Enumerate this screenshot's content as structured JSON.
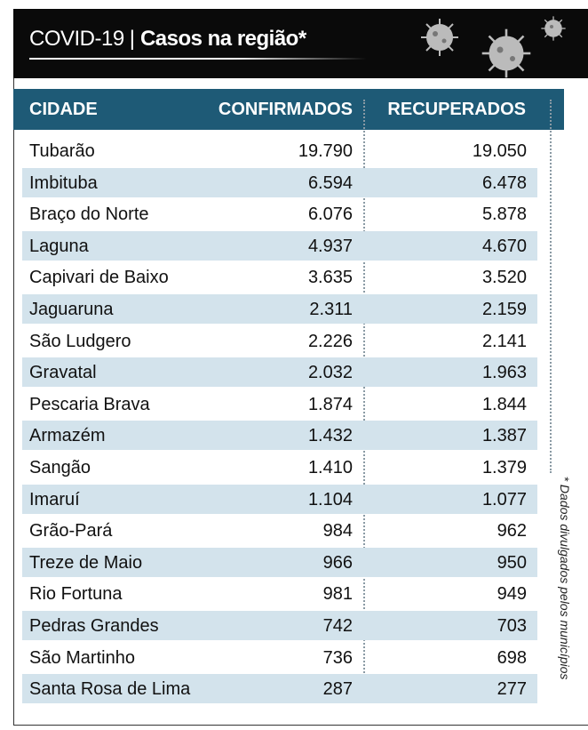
{
  "header": {
    "prefix": "COVID-19",
    "separator": "|",
    "title": "Casos na região*"
  },
  "table": {
    "columns": [
      "CIDADE",
      "CONFIRMADOS",
      "RECUPERADOS"
    ],
    "rows": [
      [
        "Tubarão",
        "19.790",
        "19.050"
      ],
      [
        "Imbituba",
        "6.594",
        "6.478"
      ],
      [
        "Braço do Norte",
        "6.076",
        "5.878"
      ],
      [
        "Laguna",
        "4.937",
        "4.670"
      ],
      [
        "Capivari de Baixo",
        "3.635",
        "3.520"
      ],
      [
        "Jaguaruna",
        "2.311",
        "2.159"
      ],
      [
        "São Ludgero",
        "2.226",
        "2.141"
      ],
      [
        "Gravatal",
        "2.032",
        "1.963"
      ],
      [
        "Pescaria Brava",
        "1.874",
        "1.844"
      ],
      [
        "Armazém",
        "1.432",
        "1.387"
      ],
      [
        "Sangão",
        "1.410",
        "1.379"
      ],
      [
        "Imaruí",
        "1.104",
        "1.077"
      ],
      [
        "Grão-Pará",
        "984",
        "962"
      ],
      [
        "Treze de Maio",
        "966",
        "950"
      ],
      [
        "Rio Fortuna",
        "981",
        "949"
      ],
      [
        "Pedras Grandes",
        "742",
        "703"
      ],
      [
        "São Martinho",
        "736",
        "698"
      ],
      [
        "Santa Rosa de Lima",
        "287",
        "277"
      ]
    ]
  },
  "footnote": "* Dados divulgados pelos municípios"
}
